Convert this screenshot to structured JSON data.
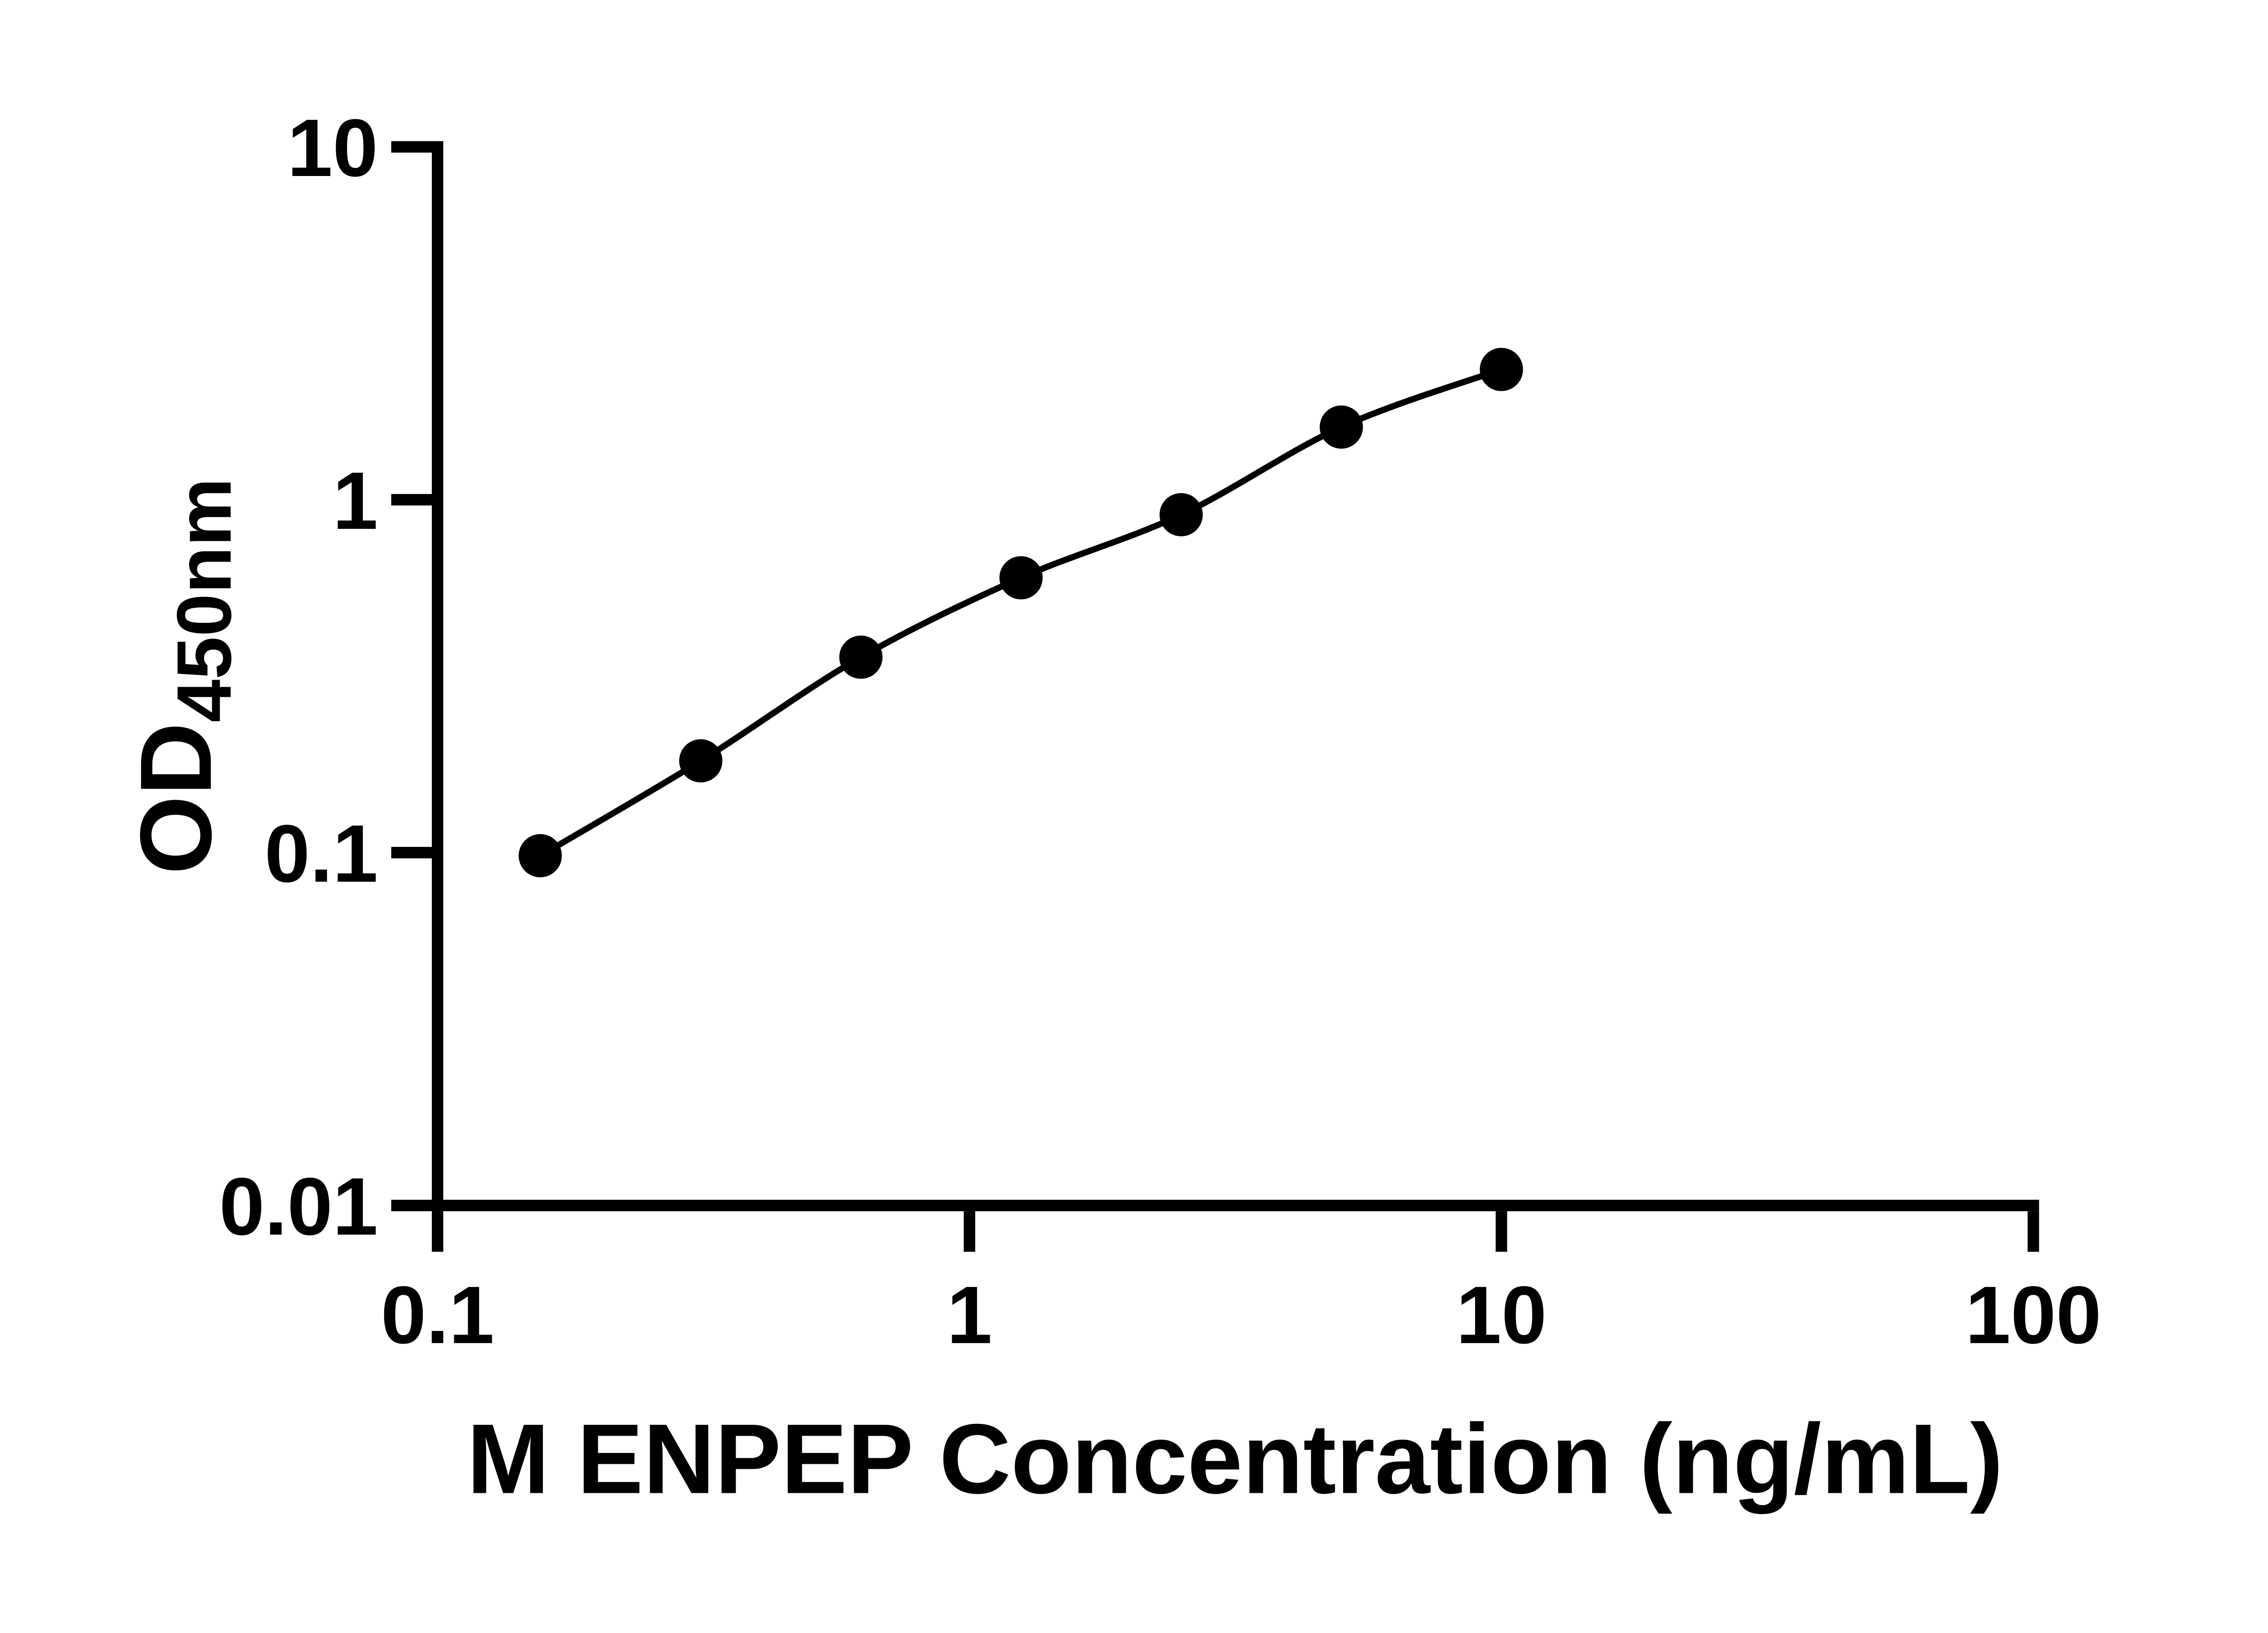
{
  "chart_data": {
    "type": "line",
    "title": "",
    "xlabel": "M ENPEP Concentration (ng/mL)",
    "ylabel": "OD450nm",
    "ylabel_main": "OD",
    "ylabel_sub": "450nm",
    "xscale": "log",
    "yscale": "log",
    "xlim": [
      0.1,
      100
    ],
    "ylim": [
      0.01,
      10
    ],
    "x_ticks": [
      0.1,
      1,
      10,
      100
    ],
    "x_tick_labels": [
      "0.1",
      "1",
      "10",
      "100"
    ],
    "y_ticks": [
      10,
      1,
      0.1,
      0.01
    ],
    "y_tick_labels": [
      "10",
      "1",
      "0.1",
      "0.01"
    ],
    "grid": false,
    "legend": false,
    "marker": "filled-circle",
    "series": [
      {
        "x": [
          0.156,
          0.3125,
          0.625,
          1.25,
          2.5,
          5,
          10
        ],
        "y": [
          0.098,
          0.182,
          0.358,
          0.601,
          0.907,
          1.607,
          2.34
        ]
      }
    ],
    "colors": {
      "line": "#000000",
      "marker": "#000000",
      "axis": "#000000",
      "text": "#000000",
      "background": "#ffffff"
    }
  }
}
